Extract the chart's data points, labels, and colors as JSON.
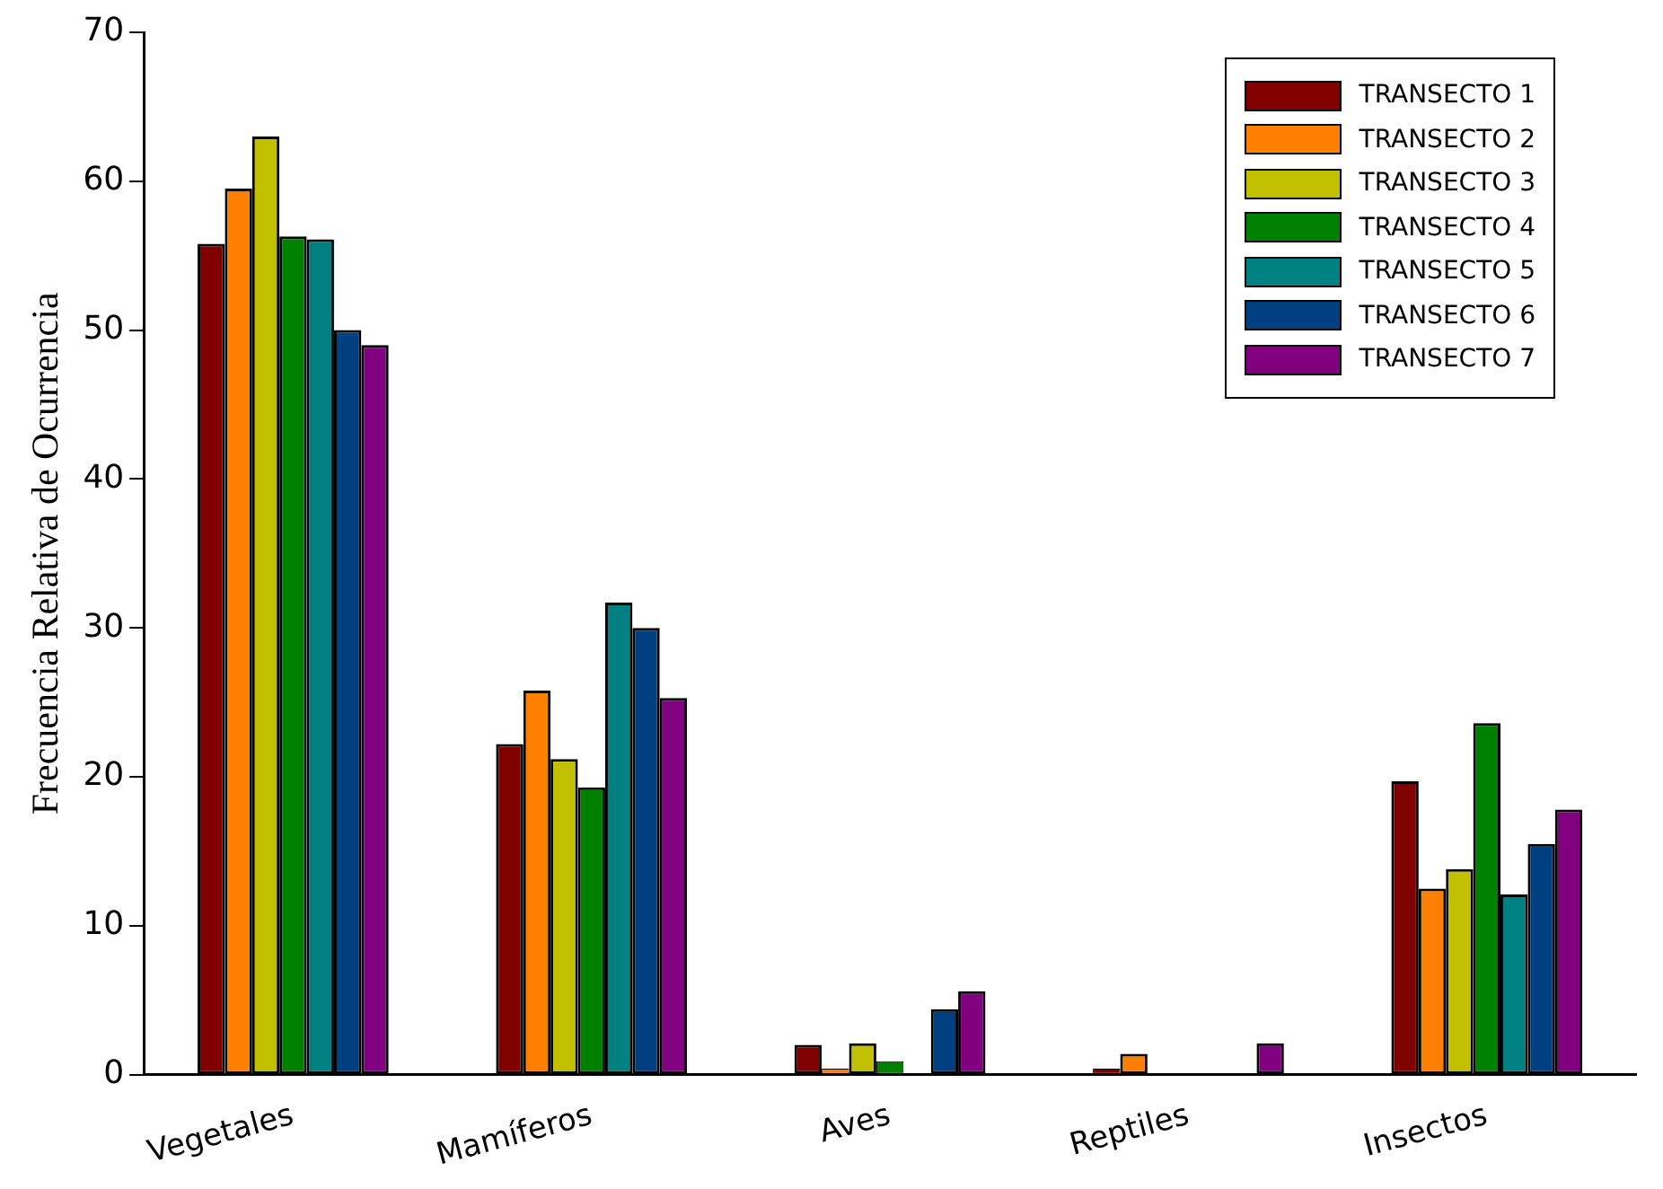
{
  "chart_data": {
    "type": "bar",
    "ylabel": "Frecuencia Relativa de Ocurrencia",
    "categories": [
      "Vegetales",
      "Mamíferos",
      "Aves",
      "Reptiles",
      "Insectos"
    ],
    "series": [
      {
        "name": "TRANSECTO 1",
        "color": "#800000",
        "values": [
          55.8,
          22.2,
          2.0,
          0.4,
          19.7
        ]
      },
      {
        "name": "TRANSECTO 2",
        "color": "#ff8000",
        "values": [
          59.5,
          25.8,
          0.4,
          1.4,
          12.5
        ]
      },
      {
        "name": "TRANSECTO 3",
        "color": "#c0c000",
        "values": [
          63,
          21.2,
          2.1,
          0,
          13.8
        ]
      },
      {
        "name": "TRANSECTO 4",
        "color": "#008000",
        "values": [
          56.3,
          19.3,
          0.9,
          0,
          23.6
        ]
      },
      {
        "name": "TRANSECTO 5",
        "color": "#008080",
        "values": [
          56.1,
          31.7,
          0,
          0,
          12.1
        ]
      },
      {
        "name": "TRANSECTO 6",
        "color": "#004080",
        "values": [
          50,
          30,
          4.4,
          0,
          15.5
        ]
      },
      {
        "name": "TRANSECTO 7",
        "color": "#800080",
        "values": [
          49,
          25.3,
          5.6,
          2.1,
          17.8
        ]
      }
    ],
    "ylim": [
      0,
      70
    ],
    "yticks": [
      0,
      10,
      20,
      30,
      40,
      50,
      60,
      70
    ],
    "grid": false,
    "legend": "top right"
  }
}
